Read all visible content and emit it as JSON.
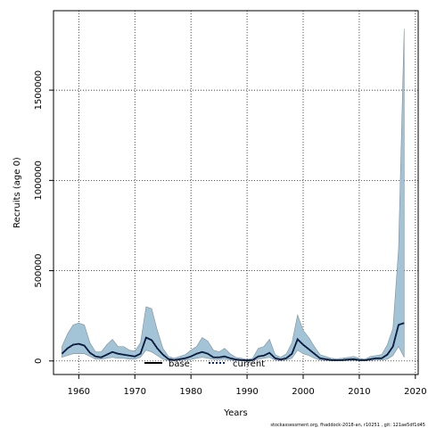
{
  "chart_data": {
    "type": "line",
    "title": "",
    "xlabel": "Years",
    "ylabel": "Recruits (age 0)",
    "xlim": [
      1955.5,
      2020.5
    ],
    "ylim": [
      -75000,
      1940000
    ],
    "x_ticks": [
      1960,
      1970,
      1980,
      1990,
      2000,
      2010,
      2020
    ],
    "y_ticks": [
      0,
      500000,
      1000000,
      1500000
    ],
    "y_tick_labels": [
      "0",
      "500000",
      "1000000",
      "1500000"
    ],
    "grid": true,
    "legend_position": "bottom-center",
    "colors": {
      "band": "#a2c4d6",
      "band_edge": "#7f8f99",
      "base": "#000000",
      "current": "#0b2d6e"
    },
    "series": [
      {
        "name": "base",
        "style": "solid"
      },
      {
        "name": "current",
        "style": "dotted"
      }
    ],
    "x": [
      1957,
      1958,
      1959,
      1960,
      1961,
      1962,
      1963,
      1964,
      1965,
      1966,
      1967,
      1968,
      1969,
      1970,
      1971,
      1972,
      1973,
      1974,
      1975,
      1976,
      1977,
      1978,
      1979,
      1980,
      1981,
      1982,
      1983,
      1984,
      1985,
      1986,
      1987,
      1988,
      1989,
      1990,
      1991,
      1992,
      1993,
      1994,
      1995,
      1996,
      1997,
      1998,
      1999,
      2000,
      2001,
      2002,
      2003,
      2004,
      2005,
      2006,
      2007,
      2008,
      2009,
      2010,
      2011,
      2012,
      2013,
      2014,
      2015,
      2016,
      2017,
      2018
    ],
    "estimate": [
      40000,
      70000,
      90000,
      95000,
      85000,
      45000,
      25000,
      20000,
      35000,
      50000,
      40000,
      35000,
      30000,
      25000,
      40000,
      130000,
      115000,
      70000,
      35000,
      10000,
      5000,
      10000,
      15000,
      25000,
      40000,
      50000,
      40000,
      20000,
      20000,
      25000,
      15000,
      8000,
      5000,
      3000,
      5000,
      25000,
      30000,
      45000,
      15000,
      8000,
      15000,
      40000,
      120000,
      90000,
      65000,
      40000,
      15000,
      10000,
      5000,
      4000,
      5000,
      8000,
      10000,
      5000,
      4000,
      10000,
      15000,
      15000,
      35000,
      80000,
      200000,
      210000
    ],
    "lower": [
      20000,
      30000,
      40000,
      40000,
      40000,
      25000,
      10000,
      10000,
      15000,
      20000,
      15000,
      15000,
      10000,
      10000,
      20000,
      60000,
      50000,
      30000,
      10000,
      2000,
      1000,
      3000,
      5000,
      8000,
      15000,
      20000,
      15000,
      8000,
      8000,
      10000,
      5000,
      2000,
      1000,
      500,
      1000,
      10000,
      15000,
      20000,
      5000,
      2000,
      5000,
      15000,
      60000,
      40000,
      30000,
      15000,
      5000,
      3000,
      1000,
      1000,
      1000,
      2000,
      3000,
      1000,
      1000,
      3000,
      5000,
      5000,
      10000,
      30000,
      80000,
      20000
    ],
    "upper": [
      80000,
      150000,
      200000,
      210000,
      200000,
      100000,
      50000,
      50000,
      90000,
      120000,
      80000,
      80000,
      60000,
      55000,
      100000,
      300000,
      290000,
      170000,
      70000,
      25000,
      15000,
      25000,
      35000,
      60000,
      80000,
      130000,
      110000,
      60000,
      50000,
      70000,
      40000,
      20000,
      15000,
      8000,
      15000,
      70000,
      80000,
      120000,
      35000,
      20000,
      40000,
      100000,
      255000,
      170000,
      130000,
      80000,
      35000,
      25000,
      15000,
      12000,
      15000,
      20000,
      25000,
      15000,
      10000,
      25000,
      30000,
      35000,
      90000,
      180000,
      620000,
      1840000
    ]
  },
  "legend": {
    "base_label": "base",
    "current_label": "current"
  },
  "footer": "stockassessment.org, fhaddock-2018-an, r10251 , git: 121ae5df1d45"
}
